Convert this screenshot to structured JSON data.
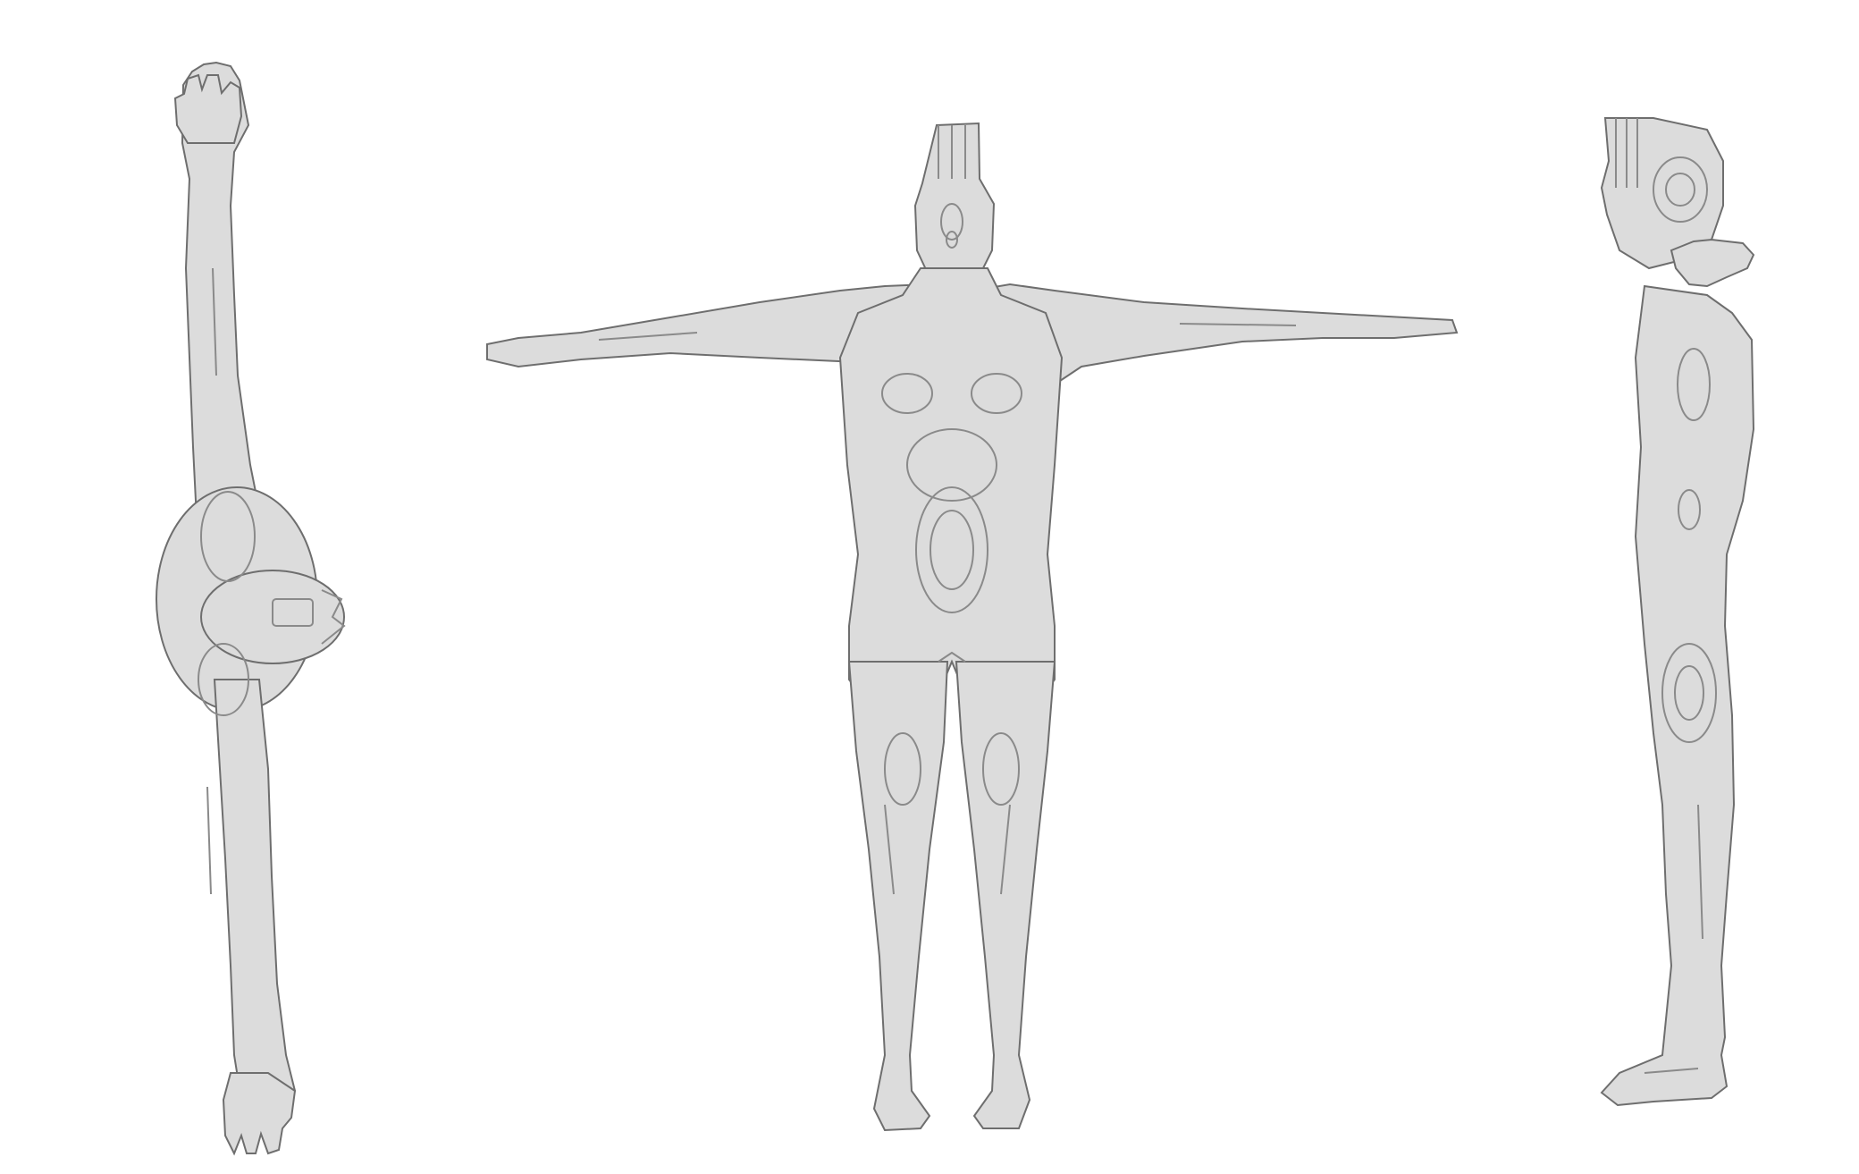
{
  "scene": {
    "background_color": "#ffffff",
    "mesh_fill": "#dcdcdc",
    "mesh_stroke": "#6e6e6e",
    "contour_color": "#8a8a8a",
    "views": [
      {
        "name": "top",
        "subject": "voxel-human-mesh"
      },
      {
        "name": "front",
        "subject": "voxel-human-mesh"
      },
      {
        "name": "side",
        "subject": "voxel-human-mesh"
      }
    ]
  }
}
